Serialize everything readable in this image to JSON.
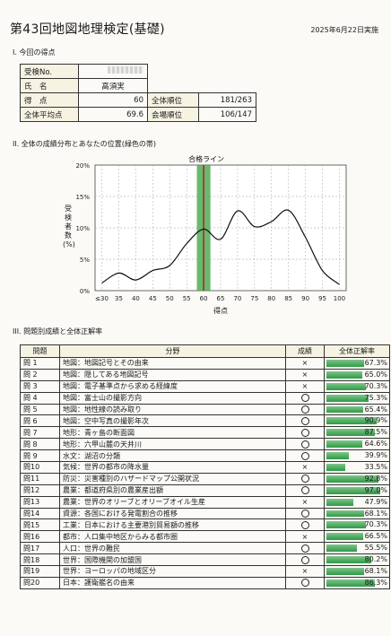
{
  "header": {
    "title": "第43回地図地理検定(基礎)",
    "date": "2025年6月22日実施"
  },
  "section1": {
    "heading": "I. 今回の得点"
  },
  "score_table": {
    "exam_no_label": "受検No.",
    "name_label": "氏　名",
    "name_value": "高須実",
    "score_label": "得　点",
    "score_value": "60",
    "rank_label": "全体順位",
    "rank_value": "181/263",
    "avg_label": "全体平均点",
    "avg_value": "69.6",
    "venue_rank_label": "会場順位",
    "venue_rank_value": "106/147"
  },
  "section2": {
    "heading": "II. 全体の成績分布とあなたの位置(緑色の帯)"
  },
  "chart_data": {
    "type": "line",
    "pass_line_label": "合格ライン",
    "xlabel": "得点",
    "ylabel": "受検者数(%)",
    "xlim": [
      28,
      102
    ],
    "ylim": [
      0,
      20
    ],
    "x_ticks": [
      "≤30",
      "35",
      "40",
      "45",
      "50",
      "55",
      "60",
      "65",
      "70",
      "75",
      "80",
      "85",
      "90",
      "95",
      "100"
    ],
    "y_ticks": [
      "0%",
      "5%",
      "10%",
      "15%",
      "20%"
    ],
    "x": [
      30,
      35,
      40,
      45,
      50,
      55,
      60,
      65,
      70,
      75,
      80,
      85,
      90,
      95,
      100
    ],
    "values": [
      1.2,
      2.8,
      1.7,
      3.2,
      4.0,
      7.5,
      9.8,
      8.2,
      12.7,
      10.2,
      11.0,
      12.8,
      8.5,
      3.2,
      1.0
    ],
    "band": [
      58,
      62
    ],
    "pass_line": 60,
    "grid": true
  },
  "section3": {
    "heading": "III. 問題別成績と全体正解率"
  },
  "q_headers": {
    "no": "問題",
    "field": "分野",
    "result": "成績",
    "rate": "全体正解率"
  },
  "questions": [
    {
      "no": "問 1",
      "field": "地図：地図記号とその由来",
      "result": "×",
      "rate": 67.3,
      "rate_text": "67.3%"
    },
    {
      "no": "問 2",
      "field": "地図：隠してある地図記号",
      "result": "×",
      "rate": 65.0,
      "rate_text": "65.0%"
    },
    {
      "no": "問 3",
      "field": "地図：電子基準点から求める経緯度",
      "result": "×",
      "rate": 70.3,
      "rate_text": "70.3%"
    },
    {
      "no": "問 4",
      "field": "地図：富士山の撮影方向",
      "result": "○",
      "rate": 75.3,
      "rate_text": "75.3%"
    },
    {
      "no": "問 5",
      "field": "地図：地性線の読み取り",
      "result": "○",
      "rate": 65.4,
      "rate_text": "65.4%"
    },
    {
      "no": "問 6",
      "field": "地図：空中写真の撮影年次",
      "result": "○",
      "rate": 90.9,
      "rate_text": "90.9%"
    },
    {
      "no": "問 7",
      "field": "地形：青ヶ島の断面図",
      "result": "○",
      "rate": 87.5,
      "rate_text": "87.5%"
    },
    {
      "no": "問 8",
      "field": "地形：六甲山麓の天井川",
      "result": "○",
      "rate": 64.6,
      "rate_text": "64.6%"
    },
    {
      "no": "問 9",
      "field": "水文：湖沼の分類",
      "result": "○",
      "rate": 39.9,
      "rate_text": "39.9%"
    },
    {
      "no": "問10",
      "field": "気候：世界の都市の降水量",
      "result": "×",
      "rate": 33.5,
      "rate_text": "33.5%"
    },
    {
      "no": "問11",
      "field": "防災：災害種別のハザードマップ公開状況",
      "result": "○",
      "rate": 92.8,
      "rate_text": "92.8%"
    },
    {
      "no": "問12",
      "field": "農業：都道府県別の農業産出額",
      "result": "○",
      "rate": 97.0,
      "rate_text": "97.0%"
    },
    {
      "no": "問13",
      "field": "農業：世界のオリーブとオリーブオイル生産",
      "result": "×",
      "rate": 47.9,
      "rate_text": "47.9%"
    },
    {
      "no": "問14",
      "field": "資源：各国における発電割合の推移",
      "result": "○",
      "rate": 68.1,
      "rate_text": "68.1%"
    },
    {
      "no": "問15",
      "field": "工業：日本における主要港別貿易額の推移",
      "result": "○",
      "rate": 70.3,
      "rate_text": "70.3%"
    },
    {
      "no": "問16",
      "field": "都市：人口集中地区からみる都市圏",
      "result": "×",
      "rate": 66.5,
      "rate_text": "66.5%"
    },
    {
      "no": "問17",
      "field": "人口：世界の難民",
      "result": "○",
      "rate": 55.5,
      "rate_text": "55.5%"
    },
    {
      "no": "問18",
      "field": "世界：国際機関の加盟国",
      "result": "○",
      "rate": 80.2,
      "rate_text": "80.2%"
    },
    {
      "no": "問19",
      "field": "世界：ヨーロッパの地域区分",
      "result": "×",
      "rate": 68.1,
      "rate_text": "68.1%"
    },
    {
      "no": "問20",
      "field": "日本：護衛艦名の由来",
      "result": "○",
      "rate": 86.3,
      "rate_text": "86.3%"
    }
  ]
}
